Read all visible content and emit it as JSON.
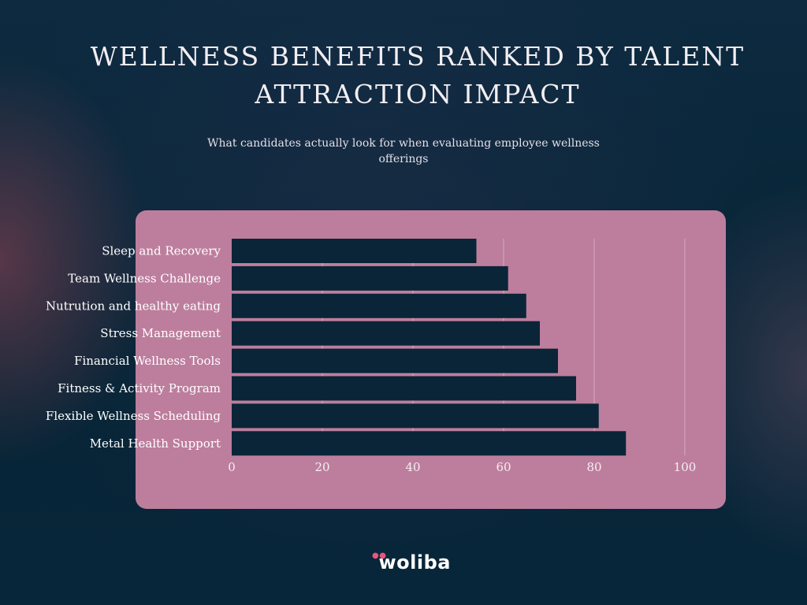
{
  "page": {
    "title": "WELLNESS BENEFITS RANKED BY TALENT ATTRACTION IMPACT",
    "subtitle": "What candidates actually look for when evaluating employee wellness offerings",
    "logo_text": "woliba"
  },
  "colors": {
    "background": "#062435",
    "panel": "#bd7e9d",
    "bar": "#0a2537",
    "logo_accent": "#e8567a"
  },
  "chart_data": {
    "type": "bar",
    "orientation": "horizontal",
    "categories": [
      "Sleep and Recovery",
      "Team Wellness Challenge",
      "Nutrution and healthy eating",
      "Stress Management",
      "Financial Wellness Tools",
      "Fitness & Activity Program",
      "Flexible Wellness Scheduling",
      "Metal Health Support"
    ],
    "values": [
      54,
      61,
      65,
      68,
      72,
      76,
      81,
      87
    ],
    "xlim": [
      0,
      100
    ],
    "xticks": [
      0,
      20,
      40,
      60,
      80,
      100
    ],
    "grid": true,
    "legend": "none"
  }
}
